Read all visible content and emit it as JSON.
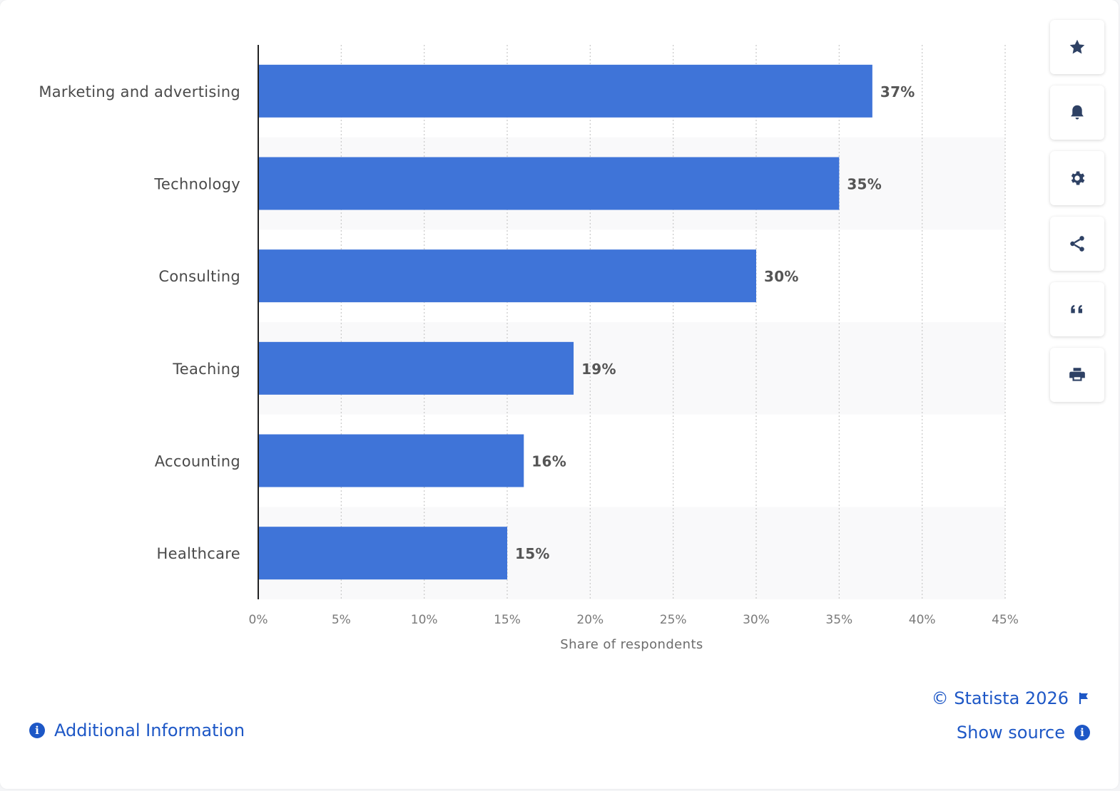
{
  "chart_data": {
    "type": "bar",
    "orientation": "horizontal",
    "categories": [
      "Marketing and advertising",
      "Technology",
      "Consulting",
      "Teaching",
      "Accounting",
      "Healthcare"
    ],
    "values": [
      37,
      35,
      30,
      19,
      16,
      15
    ],
    "value_labels": [
      "37%",
      "35%",
      "30%",
      "19%",
      "16%",
      "15%"
    ],
    "xlabel": "Share of respondents",
    "ylabel": "",
    "xlim": [
      0,
      45
    ],
    "x_ticks": [
      "0%",
      "5%",
      "10%",
      "15%",
      "20%",
      "25%",
      "30%",
      "35%",
      "40%",
      "45%"
    ],
    "bar_color": "#3f74d8",
    "grid": true
  },
  "toolbar": {
    "items": [
      {
        "name": "favorite",
        "icon": "star-icon"
      },
      {
        "name": "notification",
        "icon": "bell-icon"
      },
      {
        "name": "settings",
        "icon": "gear-icon"
      },
      {
        "name": "share",
        "icon": "share-icon"
      },
      {
        "name": "cite",
        "icon": "quote-icon"
      },
      {
        "name": "print",
        "icon": "printer-icon"
      }
    ]
  },
  "footer": {
    "additional_info": "Additional Information",
    "copyright": "© Statista 2026",
    "show_source": "Show source"
  },
  "colors": {
    "accent": "#1d57c6",
    "bar": "#3f74d8",
    "icon": "#2e4164"
  }
}
